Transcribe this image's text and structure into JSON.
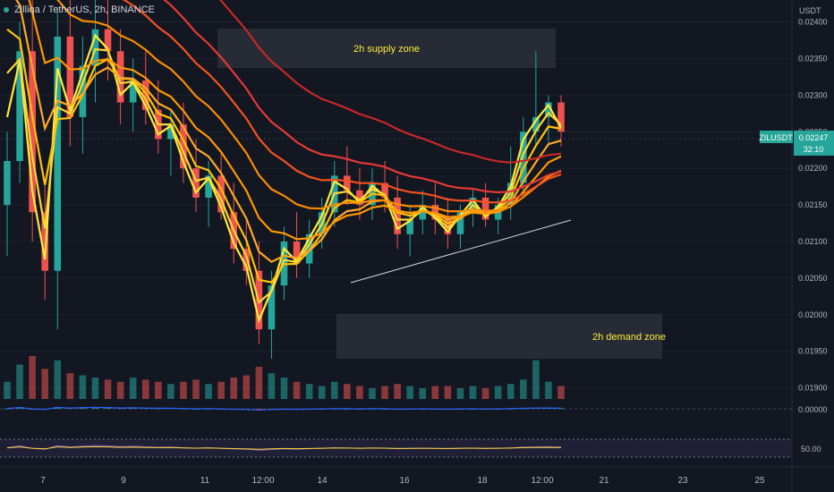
{
  "header": {
    "symbol_title": "Zilliqa / TetherUS, 2h, BINANCE"
  },
  "price_scale": {
    "currency": "USDT",
    "ticks": [
      "0.02400",
      "0.02350",
      "0.02300",
      "0.02250",
      "0.02200",
      "0.02150",
      "0.02100",
      "0.02050",
      "0.02000",
      "0.01950",
      "0.01900"
    ]
  },
  "last_price": {
    "symbol": "ZILUSDT",
    "value": "0.02247",
    "countdown": "32:10",
    "color": "#26a69a"
  },
  "oscillators": {
    "macd_scale_label": "0.00000",
    "rsi_scale_label": "50.00"
  },
  "time_axis": {
    "labels": [
      "7",
      "9",
      "11",
      "12:00",
      "14",
      "16",
      "18",
      "12:00",
      "21",
      "23",
      "25"
    ]
  },
  "zones": [
    {
      "label": "2h supply zone"
    },
    {
      "label": "2h demand zone"
    }
  ],
  "colors": {
    "background": "#131722",
    "bull": "#26a69a",
    "bear": "#ef5350",
    "ribbon": [
      "#ffeb3b",
      "#fdd835",
      "#ffc107",
      "#ffa726",
      "#ff9800",
      "#fb8c00",
      "#f4511e",
      "#e53935",
      "#c62828"
    ],
    "zone_fill": "#2a2e39",
    "zone_text": "#ffeb3b",
    "axis_text": "#b2b5be"
  },
  "chart_data": [
    {
      "type": "candlestick",
      "title": "Zilliqa / TetherUS, 2h, BINANCE",
      "ylim": [
        0.0188,
        0.0243
      ],
      "x_labels": [
        "7",
        "9",
        "11",
        "12:00",
        "14",
        "16",
        "18",
        "12:00",
        "21",
        "23",
        "25"
      ],
      "candles_ohlc": [
        [
          0.0215,
          0.0225,
          0.0208,
          0.0221
        ],
        [
          0.0221,
          0.024,
          0.0218,
          0.0236
        ],
        [
          0.0236,
          0.0243,
          0.021,
          0.0214
        ],
        [
          0.0214,
          0.0218,
          0.0202,
          0.0206
        ],
        [
          0.0206,
          0.0242,
          0.0198,
          0.0238
        ],
        [
          0.0238,
          0.0243,
          0.0223,
          0.0227
        ],
        [
          0.0227,
          0.0238,
          0.0222,
          0.0234
        ],
        [
          0.0234,
          0.0243,
          0.0229,
          0.0239
        ],
        [
          0.0239,
          0.0243,
          0.0232,
          0.0236
        ],
        [
          0.0236,
          0.0239,
          0.0226,
          0.0229
        ],
        [
          0.0229,
          0.0235,
          0.0225,
          0.0232
        ],
        [
          0.0232,
          0.0236,
          0.0226,
          0.0228
        ],
        [
          0.0228,
          0.0232,
          0.0222,
          0.0224
        ],
        [
          0.0224,
          0.0228,
          0.0219,
          0.0226
        ],
        [
          0.0226,
          0.0229,
          0.0218,
          0.022
        ],
        [
          0.022,
          0.0224,
          0.0214,
          0.0216
        ],
        [
          0.0216,
          0.0221,
          0.0212,
          0.0219
        ],
        [
          0.0219,
          0.0222,
          0.0213,
          0.0214
        ],
        [
          0.0214,
          0.0218,
          0.0207,
          0.0209
        ],
        [
          0.0209,
          0.0213,
          0.0204,
          0.0206
        ],
        [
          0.0206,
          0.021,
          0.0196,
          0.0198
        ],
        [
          0.0198,
          0.0206,
          0.0194,
          0.0204
        ],
        [
          0.0204,
          0.0212,
          0.0202,
          0.021
        ],
        [
          0.021,
          0.0214,
          0.0205,
          0.0207
        ],
        [
          0.0207,
          0.0213,
          0.0205,
          0.0211
        ],
        [
          0.0211,
          0.0216,
          0.0209,
          0.0214
        ],
        [
          0.0214,
          0.0221,
          0.0212,
          0.0219
        ],
        [
          0.0219,
          0.0223,
          0.0215,
          0.0217
        ],
        [
          0.0217,
          0.022,
          0.0213,
          0.0215
        ],
        [
          0.0215,
          0.022,
          0.0213,
          0.0218
        ],
        [
          0.0218,
          0.0221,
          0.0214,
          0.0216
        ],
        [
          0.0216,
          0.0219,
          0.0209,
          0.0211
        ],
        [
          0.0211,
          0.0215,
          0.0208,
          0.0213
        ],
        [
          0.0213,
          0.0217,
          0.0211,
          0.0215
        ],
        [
          0.0215,
          0.0218,
          0.0211,
          0.0213
        ],
        [
          0.0213,
          0.0216,
          0.0209,
          0.0211
        ],
        [
          0.0211,
          0.0215,
          0.0209,
          0.0214
        ],
        [
          0.0214,
          0.0217,
          0.0212,
          0.0216
        ],
        [
          0.0216,
          0.0218,
          0.0212,
          0.0213
        ],
        [
          0.0213,
          0.0216,
          0.0211,
          0.0215
        ],
        [
          0.0215,
          0.0223,
          0.0213,
          0.0218
        ],
        [
          0.0218,
          0.0227,
          0.0216,
          0.0225
        ],
        [
          0.0225,
          0.0236,
          0.0223,
          0.0227
        ],
        [
          0.0227,
          0.023,
          0.0223,
          0.0229
        ],
        [
          0.0229,
          0.023,
          0.0223,
          0.0225
        ]
      ],
      "volume_relative": [
        0.4,
        0.8,
        1.0,
        0.7,
        0.9,
        0.6,
        0.55,
        0.5,
        0.45,
        0.4,
        0.5,
        0.45,
        0.4,
        0.35,
        0.4,
        0.45,
        0.35,
        0.4,
        0.5,
        0.55,
        0.75,
        0.6,
        0.5,
        0.4,
        0.35,
        0.3,
        0.4,
        0.35,
        0.3,
        0.25,
        0.3,
        0.35,
        0.3,
        0.25,
        0.3,
        0.3,
        0.25,
        0.3,
        0.25,
        0.3,
        0.35,
        0.45,
        0.9,
        0.4,
        0.3
      ],
      "ribbon_ema_lengths": [
        8,
        13,
        21,
        34,
        55,
        89,
        120,
        144,
        200
      ]
    }
  ]
}
